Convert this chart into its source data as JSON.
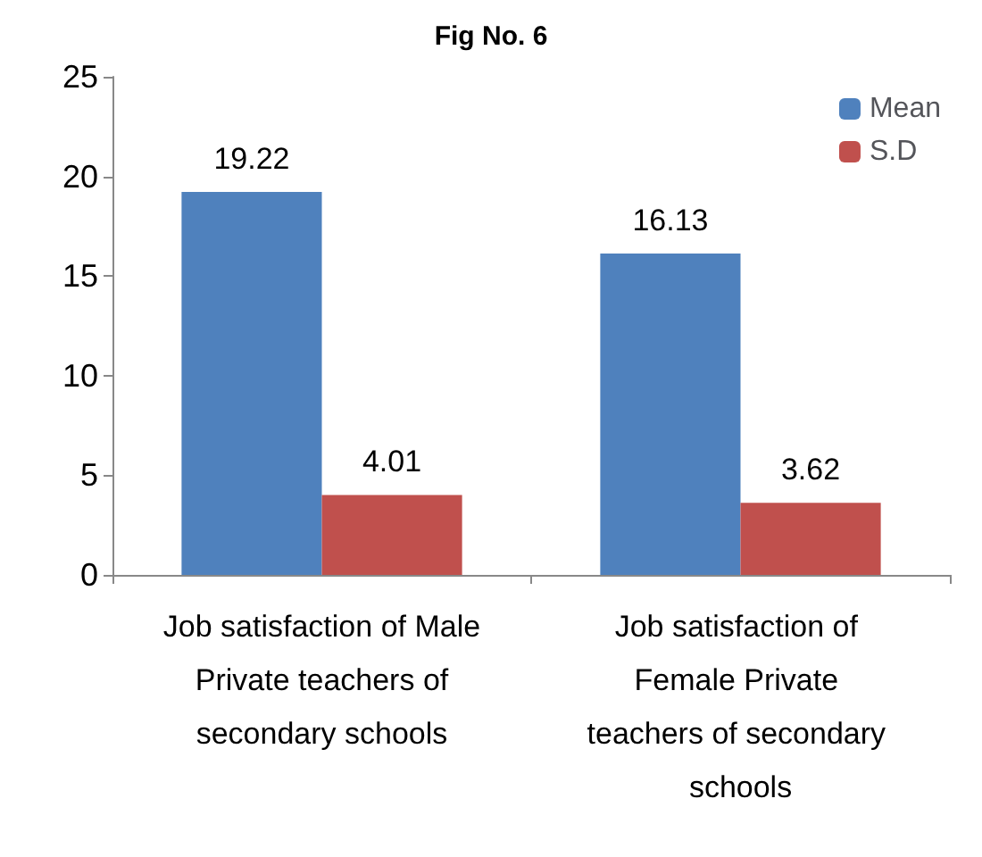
{
  "chart_data": {
    "type": "bar",
    "title": "Fig No. 6",
    "categories": [
      "Job satisfaction of Male Private teachers of secondary schools",
      "Job satisfaction of Female Private teachers of secondary schools"
    ],
    "series": [
      {
        "name": "Mean",
        "color": "#4f81bd",
        "values": [
          19.22,
          16.13
        ]
      },
      {
        "name": "S.D",
        "color": "#c0504d",
        "values": [
          4.01,
          3.62
        ]
      }
    ],
    "ylim": [
      0,
      25
    ],
    "yticks": [
      0,
      5,
      10,
      15,
      20,
      25
    ],
    "grid": false,
    "legend": "top right",
    "data_labels": true
  }
}
